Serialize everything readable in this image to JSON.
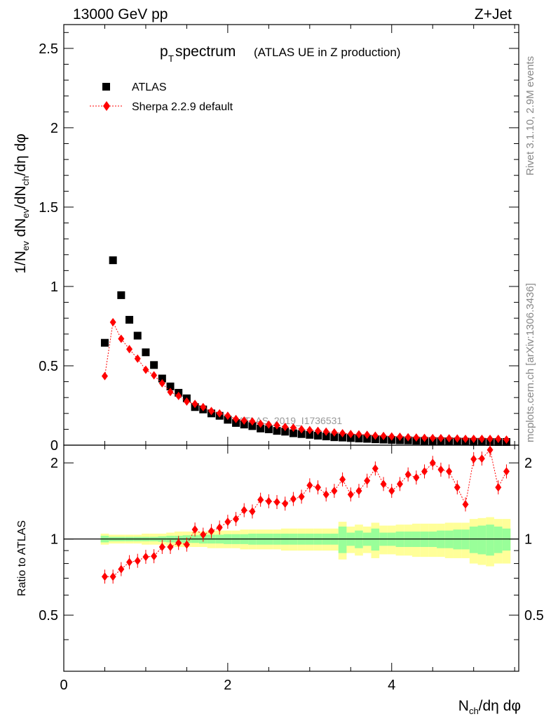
{
  "header": {
    "left": "13000 GeV pp",
    "right": "Z+Jet"
  },
  "side_labels": {
    "rivet": "Rivet 3.1.10,  2.9M events",
    "mcplots": "mcplots.cern.ch [arXiv:1306.3436]"
  },
  "chart_data": {
    "type": "scatter",
    "title_main": "p",
    "title_sub": "T",
    "title_rest": " spectrum",
    "title_note": "(ATLAS UE in Z production)",
    "watermark": "ATLAS_2019_I1736531",
    "ylabel_top": "1/N_ev dN_ev/dN_ch/dη dφ",
    "ylabel_bottom": "Ratio to ATLAS",
    "xlabel": "N_ch/dη dφ",
    "xlim": [
      0,
      5.55
    ],
    "ylim_top": [
      0,
      2.65
    ],
    "ylim_bottom": [
      0.3,
      2.35
    ],
    "x_ticks": [
      "0",
      "2",
      "4"
    ],
    "y_ticks_top": [
      "0",
      "0.5",
      "1",
      "1.5",
      "2",
      "2.5"
    ],
    "y_ticks_bottom": [
      "0.5",
      "1",
      "2"
    ],
    "legend": [
      {
        "name": "ATLAS",
        "marker": "square",
        "color": "#000000"
      },
      {
        "name": "Sherpa 2.2.9 default",
        "marker": "diamond",
        "color": "#ff0000"
      }
    ],
    "x": [
      0.5,
      0.6,
      0.7,
      0.8,
      0.9,
      1.0,
      1.1,
      1.2,
      1.3,
      1.4,
      1.5,
      1.6,
      1.7,
      1.8,
      1.9,
      2.0,
      2.1,
      2.2,
      2.3,
      2.4,
      2.5,
      2.6,
      2.7,
      2.8,
      2.9,
      3.0,
      3.1,
      3.2,
      3.3,
      3.4,
      3.5,
      3.6,
      3.7,
      3.8,
      3.9,
      4.0,
      4.1,
      4.2,
      4.3,
      4.4,
      4.5,
      4.6,
      4.7,
      4.8,
      4.9,
      5.0,
      5.1,
      5.2,
      5.3,
      5.4
    ],
    "series": [
      {
        "name": "ATLAS",
        "values": [
          0.645,
          1.165,
          0.945,
          0.79,
          0.69,
          0.585,
          0.505,
          0.42,
          0.37,
          0.33,
          0.295,
          0.24,
          0.225,
          0.2,
          0.185,
          0.16,
          0.14,
          0.13,
          0.12,
          0.105,
          0.1,
          0.09,
          0.085,
          0.075,
          0.07,
          0.065,
          0.06,
          0.055,
          0.05,
          0.048,
          0.045,
          0.042,
          0.04,
          0.037,
          0.035,
          0.033,
          0.031,
          0.03,
          0.028,
          0.027,
          0.026,
          0.025,
          0.024,
          0.023,
          0.022,
          0.021,
          0.021,
          0.02,
          0.02,
          0.02
        ]
      },
      {
        "name": "Sherpa 2.2.9 default",
        "values": [
          0.435,
          0.775,
          0.67,
          0.605,
          0.545,
          0.475,
          0.44,
          0.39,
          0.335,
          0.31,
          0.275,
          0.26,
          0.24,
          0.215,
          0.2,
          0.185,
          0.165,
          0.155,
          0.15,
          0.135,
          0.13,
          0.125,
          0.115,
          0.11,
          0.1,
          0.095,
          0.09,
          0.085,
          0.08,
          0.075,
          0.07,
          0.068,
          0.065,
          0.06,
          0.058,
          0.055,
          0.053,
          0.05,
          0.048,
          0.046,
          0.045,
          0.044,
          0.043,
          0.042,
          0.04,
          0.04,
          0.04,
          0.04,
          0.04,
          0.035
        ]
      }
    ],
    "ratio": [
      0.71,
      0.71,
      0.76,
      0.81,
      0.82,
      0.85,
      0.855,
      0.93,
      0.93,
      0.965,
      0.95,
      1.09,
      1.04,
      1.075,
      1.11,
      1.17,
      1.2,
      1.3,
      1.285,
      1.43,
      1.41,
      1.4,
      1.38,
      1.44,
      1.47,
      1.63,
      1.6,
      1.5,
      1.55,
      1.72,
      1.5,
      1.55,
      1.7,
      1.9,
      1.65,
      1.55,
      1.65,
      1.8,
      1.75,
      1.85,
      2.0,
      1.88,
      1.85,
      1.6,
      1.37,
      2.07,
      2.08,
      2.25,
      1.6,
      1.85
    ],
    "band_inner": [
      0.03,
      0.02,
      0.02,
      0.02,
      0.02,
      0.02,
      0.02,
      0.025,
      0.03,
      0.03,
      0.035,
      0.035,
      0.04,
      0.04,
      0.04,
      0.045,
      0.045,
      0.045,
      0.05,
      0.05,
      0.05,
      0.05,
      0.05,
      0.05,
      0.05,
      0.05,
      0.05,
      0.05,
      0.05,
      0.12,
      0.06,
      0.08,
      0.06,
      0.1,
      0.06,
      0.06,
      0.07,
      0.07,
      0.07,
      0.07,
      0.07,
      0.08,
      0.08,
      0.09,
      0.09,
      0.12,
      0.13,
      0.14,
      0.12,
      0.1
    ],
    "band_outer": [
      0.05,
      0.04,
      0.04,
      0.04,
      0.04,
      0.05,
      0.05,
      0.05,
      0.06,
      0.07,
      0.07,
      0.07,
      0.07,
      0.08,
      0.08,
      0.08,
      0.08,
      0.09,
      0.09,
      0.09,
      0.09,
      0.09,
      0.1,
      0.1,
      0.1,
      0.1,
      0.1,
      0.1,
      0.1,
      0.17,
      0.12,
      0.14,
      0.12,
      0.16,
      0.13,
      0.13,
      0.14,
      0.14,
      0.15,
      0.15,
      0.15,
      0.15,
      0.16,
      0.16,
      0.16,
      0.2,
      0.21,
      0.22,
      0.2,
      0.2
    ]
  }
}
